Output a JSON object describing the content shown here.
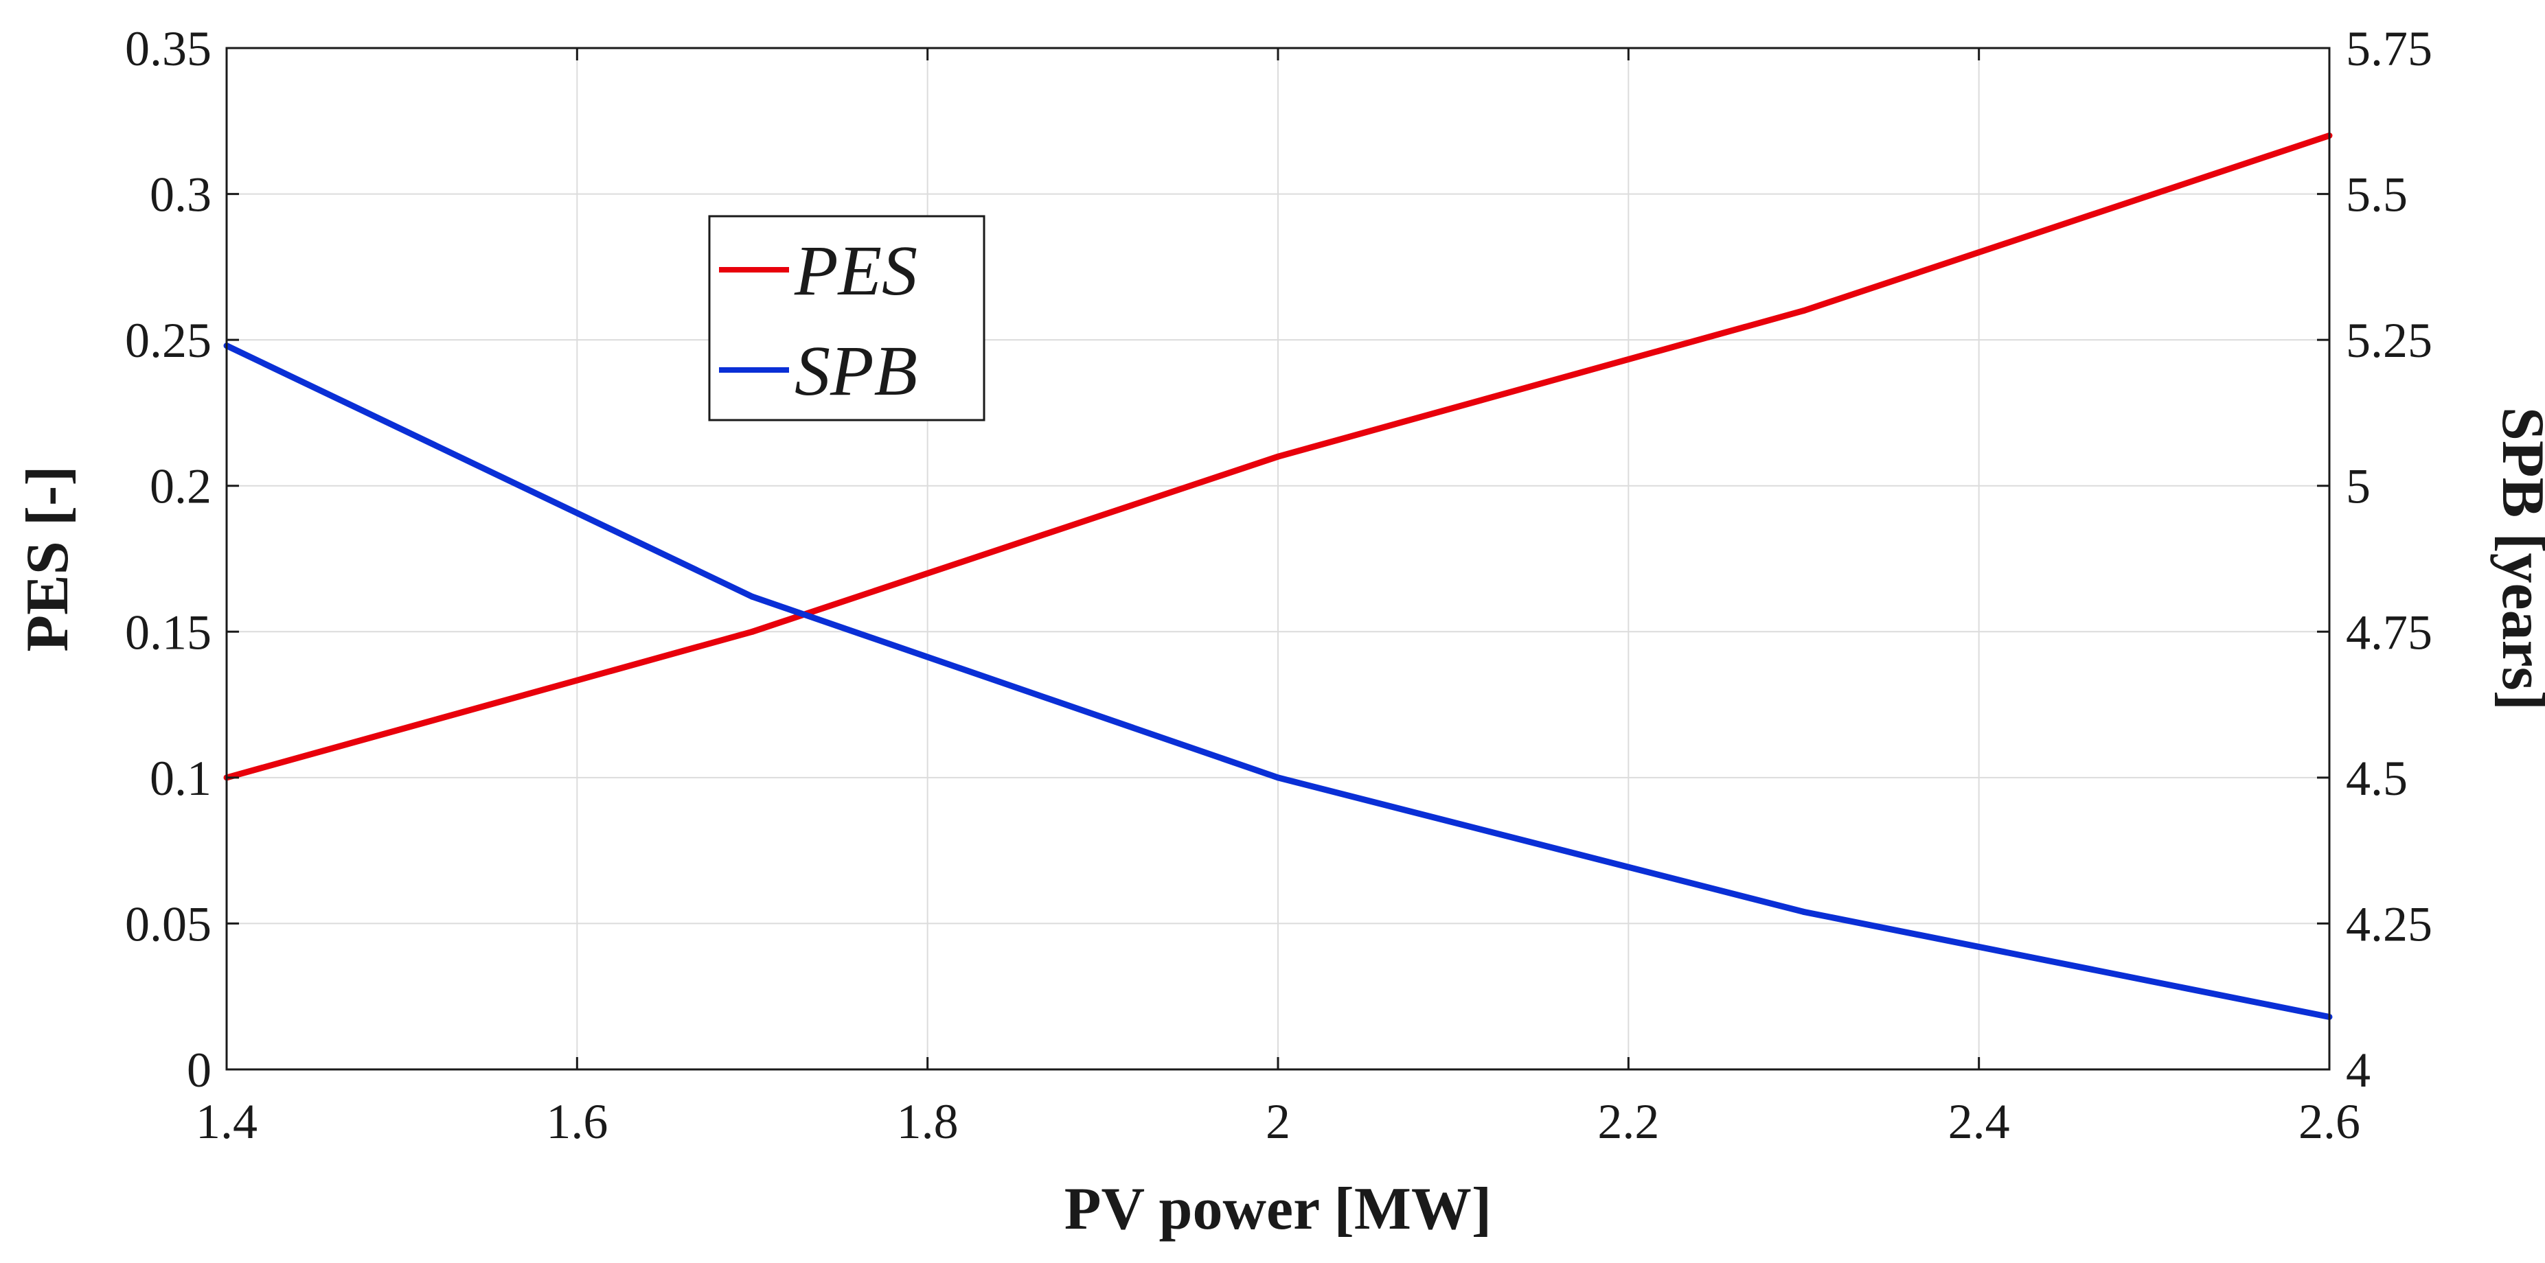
{
  "chart_data": {
    "type": "line",
    "title": "",
    "xlabel": "PV power [MW]",
    "ylabel_left": "PES [-]",
    "ylabel_right": "SPB [years]",
    "xlim": [
      1.4,
      2.6
    ],
    "ylim_left": [
      0,
      0.35
    ],
    "ylim_right": [
      4,
      5.75
    ],
    "grid": true,
    "legend_position": "upper-left-inside",
    "x_ticks": [
      "1.4",
      "1.6",
      "1.8",
      "2",
      "2.2",
      "2.4",
      "2.6"
    ],
    "y_left_ticks": [
      "0",
      "0.05",
      "0.1",
      "0.15",
      "0.2",
      "0.25",
      "0.3",
      "0.35"
    ],
    "y_right_ticks": [
      "4",
      "4.25",
      "4.5",
      "4.75",
      "5",
      "5.25",
      "5.5",
      "5.75"
    ],
    "x": [
      1.4,
      1.7,
      2.0,
      2.3,
      2.6
    ],
    "series": [
      {
        "name": "PES",
        "axis": "left",
        "color": "#e8000b",
        "values": [
          0.1,
          0.15,
          0.21,
          0.26,
          0.32
        ]
      },
      {
        "name": "SPB",
        "axis": "right",
        "color": "#0a2fd6",
        "values": [
          5.24,
          4.81,
          4.5,
          4.27,
          4.09
        ]
      }
    ]
  },
  "colors": {
    "axis": "#1a1a1a",
    "grid": "#dcdcdc"
  }
}
